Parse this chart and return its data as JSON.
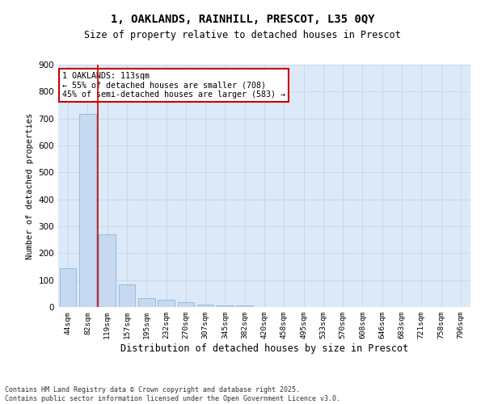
{
  "title_line1": "1, OAKLANDS, RAINHILL, PRESCOT, L35 0QY",
  "title_line2": "Size of property relative to detached houses in Prescot",
  "xlabel": "Distribution of detached houses by size in Prescot",
  "ylabel": "Number of detached properties",
  "categories": [
    "44sqm",
    "82sqm",
    "119sqm",
    "157sqm",
    "195sqm",
    "232sqm",
    "270sqm",
    "307sqm",
    "345sqm",
    "382sqm",
    "420sqm",
    "458sqm",
    "495sqm",
    "533sqm",
    "570sqm",
    "608sqm",
    "646sqm",
    "683sqm",
    "721sqm",
    "758sqm",
    "796sqm"
  ],
  "values": [
    143,
    716,
    270,
    85,
    32,
    28,
    17,
    10,
    7,
    5,
    0,
    0,
    0,
    0,
    0,
    0,
    0,
    0,
    0,
    0,
    0
  ],
  "bar_color": "#c6d9f0",
  "bar_edge_color": "#7bafd4",
  "grid_color": "#c8d4e8",
  "background_color": "#dce9f8",
  "vline_color": "#cc0000",
  "annotation_text": "1 OAKLANDS: 113sqm\n← 55% of detached houses are smaller (708)\n45% of semi-detached houses are larger (583) →",
  "annotation_box_color": "#ffffff",
  "annotation_box_edge": "#cc0000",
  "footer_text": "Contains HM Land Registry data © Crown copyright and database right 2025.\nContains public sector information licensed under the Open Government Licence v3.0.",
  "ylim": [
    0,
    900
  ],
  "yticks": [
    0,
    100,
    200,
    300,
    400,
    500,
    600,
    700,
    800,
    900
  ],
  "vline_position": 1.5
}
